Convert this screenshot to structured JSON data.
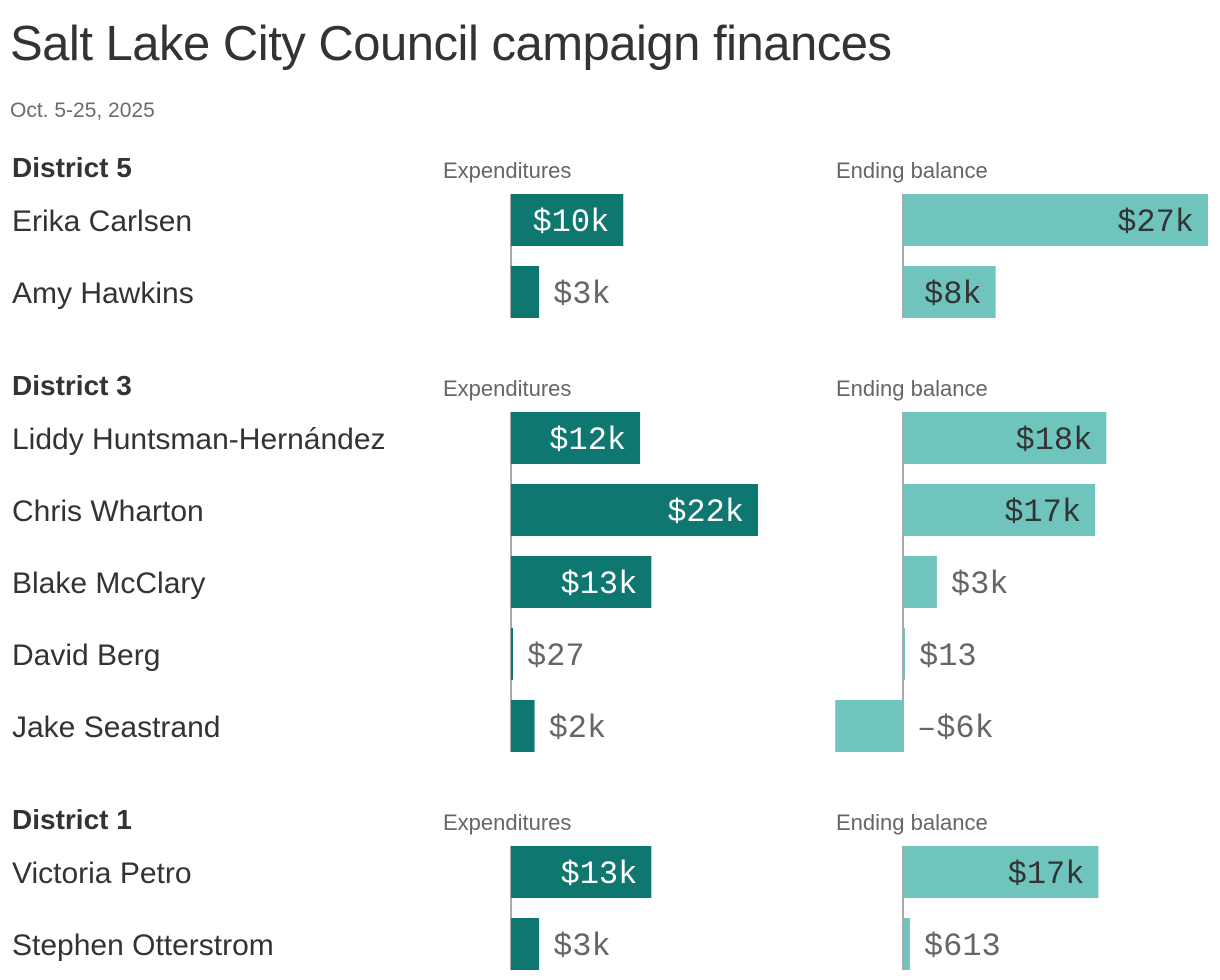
{
  "chart_data": {
    "type": "bar",
    "title": "Salt Lake City Council campaign finances",
    "subtitle": "Oct. 5-25, 2025",
    "column_headers": {
      "expenditures": "Expenditures",
      "ending_balance": "Ending balance"
    },
    "colors": {
      "expenditures": "#0e7770",
      "ending_balance": "#6fc5bd",
      "text_dark": "#333333",
      "text_light": "#ffffff",
      "muted": "#666666"
    },
    "expenditures_max": 22000,
    "balance_range": [
      -6000,
      27000
    ],
    "districts": [
      {
        "name": "District 5",
        "candidates": [
          {
            "name": "Erika Carlsen",
            "expenditures": 10000,
            "expenditures_label": "$10k",
            "ending_balance": 27000,
            "ending_balance_label": "$27k"
          },
          {
            "name": "Amy Hawkins",
            "expenditures": 2500,
            "expenditures_label": "$3k",
            "ending_balance": 8200,
            "ending_balance_label": "$8k"
          }
        ]
      },
      {
        "name": "District 3",
        "candidates": [
          {
            "name": "Liddy Huntsman-Hernández",
            "expenditures": 11500,
            "expenditures_label": "$12k",
            "ending_balance": 18000,
            "ending_balance_label": "$18k"
          },
          {
            "name": "Chris Wharton",
            "expenditures": 22000,
            "expenditures_label": "$22k",
            "ending_balance": 17000,
            "ending_balance_label": "$17k"
          },
          {
            "name": "Blake McClary",
            "expenditures": 12500,
            "expenditures_label": "$13k",
            "ending_balance": 3000,
            "ending_balance_label": "$3k"
          },
          {
            "name": "David Berg",
            "expenditures": 27,
            "expenditures_label": "$27",
            "ending_balance": 13,
            "ending_balance_label": "$13"
          },
          {
            "name": "Jake Seastrand",
            "expenditures": 2100,
            "expenditures_label": "$2k",
            "ending_balance": -6000,
            "ending_balance_label": "–$6k"
          }
        ]
      },
      {
        "name": "District 1",
        "candidates": [
          {
            "name": "Victoria Petro",
            "expenditures": 12500,
            "expenditures_label": "$13k",
            "ending_balance": 17300,
            "ending_balance_label": "$17k"
          },
          {
            "name": "Stephen Otterstrom",
            "expenditures": 2500,
            "expenditures_label": "$3k",
            "ending_balance": 613,
            "ending_balance_label": "$613"
          }
        ]
      }
    ]
  }
}
